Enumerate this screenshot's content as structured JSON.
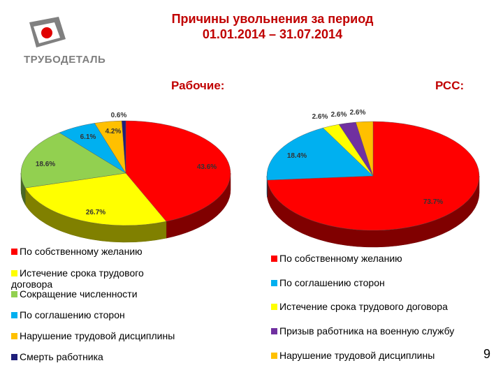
{
  "title_line1": "Причины увольнения за период",
  "title_line2": "01.01.2014 – 31.07.2014",
  "logo_text": "ТРУБОДЕТАЛЬ",
  "left_subtitle": "Рабочие:",
  "right_subtitle": "РСС:",
  "page_number": "9",
  "colors": {
    "red": "#ff0000",
    "yellow": "#ffff00",
    "green": "#92d050",
    "blue": "#00b0f0",
    "orange": "#ffc000",
    "navy": "#1f1f7a",
    "purple": "#7030a0"
  },
  "chart_data": [
    {
      "type": "pie",
      "title": "Рабочие:",
      "categories": [
        "По собственному желанию",
        "Истечение срока трудового договора",
        "Сокращение численности",
        "По соглашению сторон",
        "Нарушение трудовой дисциплины",
        "Смерть работника"
      ],
      "values": [
        43.6,
        26.7,
        18.6,
        6.1,
        4.2,
        0.6
      ],
      "labels": [
        "43.6%",
        "26.7%",
        "18.6%",
        "6.1%",
        "4.2%",
        "0.6%"
      ],
      "colors": [
        "#ff0000",
        "#ffff00",
        "#92d050",
        "#00b0f0",
        "#ffc000",
        "#1f1f7a"
      ],
      "legend_placement": "bottom"
    },
    {
      "type": "pie",
      "title": "РСС:",
      "categories": [
        "По собственному желанию",
        "По соглашению сторон",
        "Истечение срока трудового договора",
        "Призыв работника на военную службу",
        "Нарушение трудовой дисциплины"
      ],
      "values": [
        73.7,
        18.4,
        2.6,
        2.6,
        2.6
      ],
      "labels": [
        "73.7%",
        "18.4%",
        "2.6%",
        "2.6%",
        "2.6%"
      ],
      "colors": [
        "#ff0000",
        "#00b0f0",
        "#ffff00",
        "#7030a0",
        "#ffc000"
      ],
      "legend_placement": "bottom"
    }
  ]
}
